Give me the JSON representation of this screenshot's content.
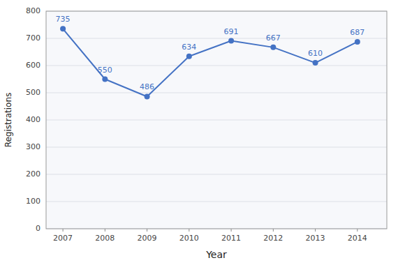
{
  "chart_data": {
    "type": "line",
    "xlabel": "Year",
    "ylabel": "Registrations",
    "x": [
      2007,
      2008,
      2009,
      2010,
      2011,
      2012,
      2013,
      2014
    ],
    "values": [
      735,
      550,
      486,
      634,
      691,
      667,
      610,
      687
    ],
    "xlim": [
      2006.6,
      2014.7
    ],
    "xticks": [
      2007,
      2008,
      2009,
      2010,
      2011,
      2012,
      2013,
      2014
    ],
    "ylim": [
      0,
      800
    ],
    "yticks": [
      0,
      100,
      200,
      300,
      400,
      500,
      600,
      700,
      800
    ],
    "color": "#4472C4",
    "marker": "circle",
    "grid": true,
    "data_labels": true
  }
}
